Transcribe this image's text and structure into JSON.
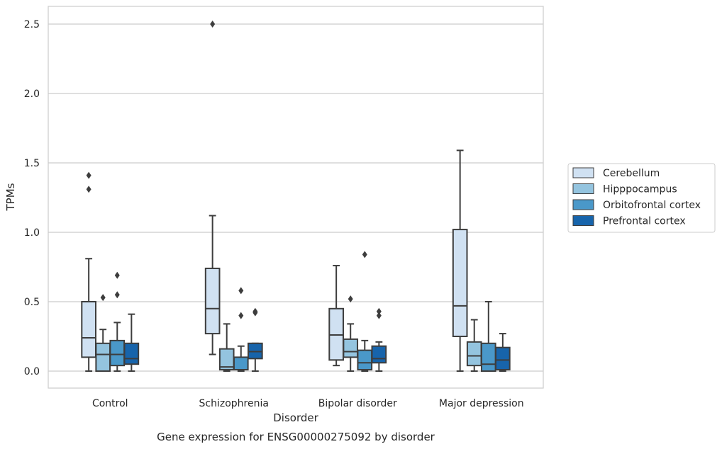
{
  "chart_data": {
    "type": "box",
    "title": "",
    "caption": "Gene expression for ENSG00000275092 by disorder",
    "xlabel": "Disorder",
    "ylabel": "TPMs",
    "ylim": [
      -0.12,
      2.63
    ],
    "yticks": [
      "0.0",
      "0.5",
      "1.0",
      "1.5",
      "2.0",
      "2.5"
    ],
    "yticks_values": [
      0.0,
      0.5,
      1.0,
      1.5,
      2.0,
      2.5
    ],
    "grid": "horizontal",
    "legend_position": "right",
    "categories": [
      "Control",
      "Schizophrenia",
      "Bipolar disorder",
      "Major depression"
    ],
    "series": [
      {
        "name": "Cerebellum",
        "color": "#d0e1f2",
        "boxes": [
          {
            "whisker_low": 0.0,
            "q1": 0.1,
            "median": 0.24,
            "q3": 0.5,
            "whisker_high": 0.81,
            "outliers": [
              1.31,
              1.41
            ]
          },
          {
            "whisker_low": 0.12,
            "q1": 0.27,
            "median": 0.45,
            "q3": 0.74,
            "whisker_high": 1.12,
            "outliers": [
              2.5
            ]
          },
          {
            "whisker_low": 0.04,
            "q1": 0.08,
            "median": 0.26,
            "q3": 0.45,
            "whisker_high": 0.76,
            "outliers": []
          },
          {
            "whisker_low": 0.0,
            "q1": 0.25,
            "median": 0.47,
            "q3": 1.02,
            "whisker_high": 1.59,
            "outliers": []
          }
        ]
      },
      {
        "name": "Hipppocampus",
        "color": "#94c4df",
        "boxes": [
          {
            "whisker_low": 0.0,
            "q1": 0.0,
            "median": 0.12,
            "q3": 0.2,
            "whisker_high": 0.3,
            "outliers": [
              0.53
            ]
          },
          {
            "whisker_low": 0.0,
            "q1": 0.01,
            "median": 0.03,
            "q3": 0.16,
            "whisker_high": 0.34,
            "outliers": []
          },
          {
            "whisker_low": 0.0,
            "q1": 0.1,
            "median": 0.14,
            "q3": 0.23,
            "whisker_high": 0.34,
            "outliers": [
              0.52
            ]
          },
          {
            "whisker_low": 0.0,
            "q1": 0.04,
            "median": 0.11,
            "q3": 0.21,
            "whisker_high": 0.37,
            "outliers": []
          }
        ]
      },
      {
        "name": "Orbitofrontal cortex",
        "color": "#4a98c9",
        "boxes": [
          {
            "whisker_low": 0.0,
            "q1": 0.04,
            "median": 0.12,
            "q3": 0.22,
            "whisker_high": 0.35,
            "outliers": [
              0.55,
              0.69
            ]
          },
          {
            "whisker_low": 0.0,
            "q1": 0.01,
            "median": 0.01,
            "q3": 0.1,
            "whisker_high": 0.18,
            "outliers": [
              0.4,
              0.58
            ]
          },
          {
            "whisker_low": 0.0,
            "q1": 0.01,
            "median": 0.06,
            "q3": 0.15,
            "whisker_high": 0.22,
            "outliers": [
              0.84
            ]
          },
          {
            "whisker_low": 0.0,
            "q1": 0.0,
            "median": 0.05,
            "q3": 0.2,
            "whisker_high": 0.5,
            "outliers": []
          }
        ]
      },
      {
        "name": "Prefrontal cortex",
        "color": "#1764ab",
        "boxes": [
          {
            "whisker_low": 0.0,
            "q1": 0.05,
            "median": 0.09,
            "q3": 0.2,
            "whisker_high": 0.41,
            "outliers": []
          },
          {
            "whisker_low": 0.0,
            "q1": 0.09,
            "median": 0.14,
            "q3": 0.2,
            "whisker_high": 0.2,
            "outliers": [
              0.42,
              0.43
            ]
          },
          {
            "whisker_low": 0.0,
            "q1": 0.06,
            "median": 0.09,
            "q3": 0.18,
            "whisker_high": 0.21,
            "outliers": [
              0.4,
              0.43
            ]
          },
          {
            "whisker_low": 0.0,
            "q1": 0.01,
            "median": 0.08,
            "q3": 0.17,
            "whisker_high": 0.27,
            "outliers": []
          }
        ]
      }
    ]
  }
}
